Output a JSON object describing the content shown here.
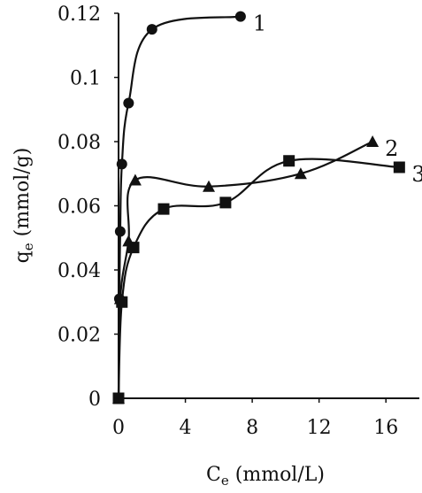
{
  "chart_data": {
    "type": "scatter",
    "xlabel": {
      "main": "C",
      "sub": "e",
      "rest": " (mmol/L)"
    },
    "ylabel": {
      "main": "q",
      "sub": "e",
      "rest": " (mmol/g)"
    },
    "xlim": [
      0,
      18
    ],
    "ylim": [
      0,
      0.12
    ],
    "xticks": [
      0,
      4,
      8,
      12,
      16
    ],
    "yticks": [
      0,
      0.02,
      0.04,
      0.06,
      0.08,
      0.1,
      0.12
    ],
    "xtick_labels": [
      "0",
      "4",
      "8",
      "12",
      "16"
    ],
    "ytick_labels": [
      "0",
      "0.02",
      "0.04",
      "0.06",
      "0.08",
      "0.1",
      "0.12"
    ],
    "grid": false,
    "line_color": "#111111",
    "series": [
      {
        "label": "1",
        "marker": "circle",
        "x": [
          0,
          0.05,
          0.1,
          0.2,
          0.6,
          2.0,
          7.3
        ],
        "y": [
          0,
          0.031,
          0.052,
          0.073,
          0.092,
          0.115,
          0.119
        ]
      },
      {
        "label": "2",
        "marker": "triangle",
        "x": [
          0,
          0.1,
          0.6,
          1.0,
          5.4,
          10.9,
          15.2
        ],
        "y": [
          0,
          0.031,
          0.049,
          0.068,
          0.066,
          0.07,
          0.08
        ]
      },
      {
        "label": "3",
        "marker": "square",
        "x": [
          0,
          0.2,
          0.9,
          2.7,
          6.4,
          10.2,
          16.8
        ],
        "y": [
          0,
          0.03,
          0.047,
          0.059,
          0.061,
          0.074,
          0.072
        ]
      }
    ]
  }
}
